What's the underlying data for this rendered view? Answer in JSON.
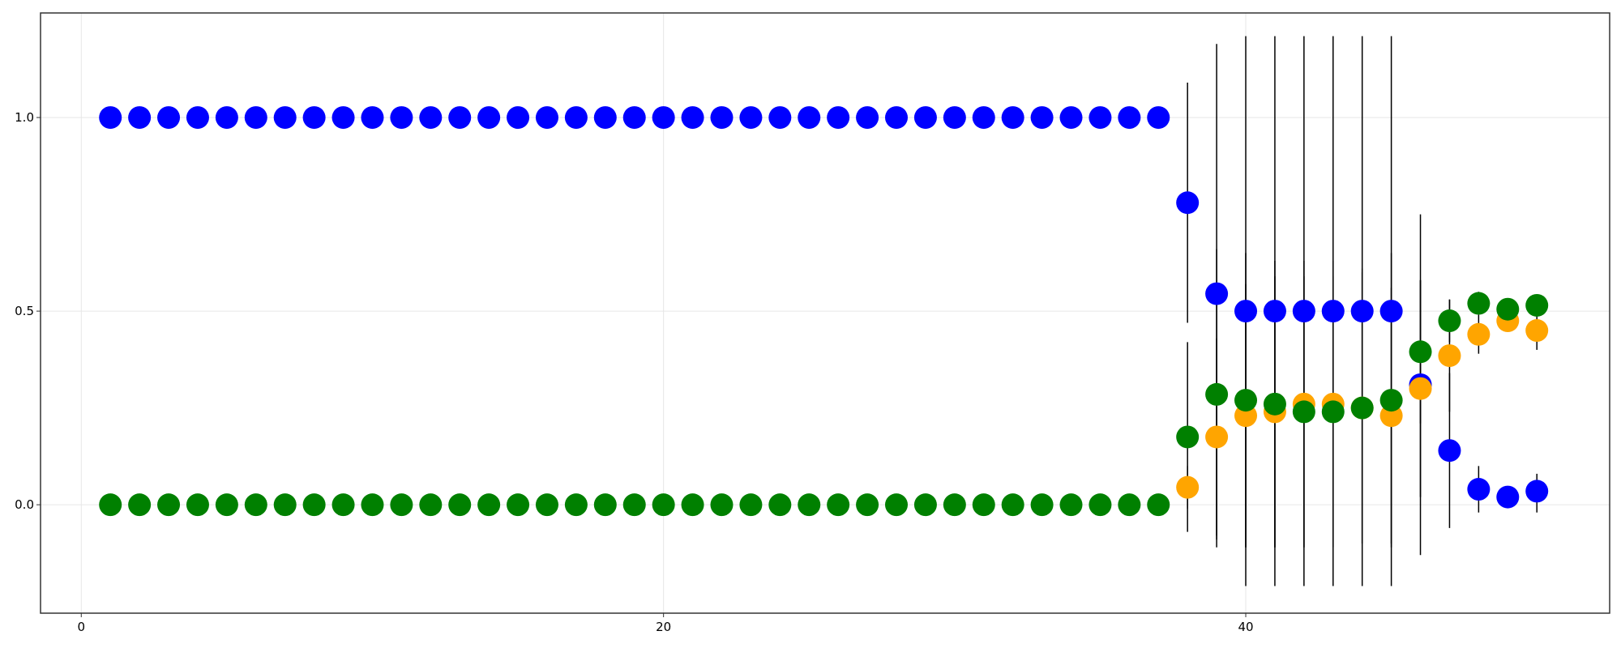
{
  "chart_data": {
    "type": "scatter",
    "title": "",
    "xlabel": "",
    "ylabel": "",
    "xlim": [
      -1.4,
      52.5
    ],
    "ylim": [
      -0.28,
      1.27
    ],
    "grid": true,
    "legend": "none",
    "x_ticks": [
      0,
      20,
      40
    ],
    "x_tick_labels": [
      "0",
      "20",
      "40"
    ],
    "y_ticks": [
      0.0,
      0.5,
      1.0
    ],
    "y_tick_labels": [
      "0.0",
      "0.5",
      "1.0"
    ],
    "series": [
      {
        "color": "#0000ff",
        "points": [
          {
            "x": 1,
            "y": 1.0
          },
          {
            "x": 2,
            "y": 1.0
          },
          {
            "x": 3,
            "y": 1.0
          },
          {
            "x": 4,
            "y": 1.0
          },
          {
            "x": 5,
            "y": 1.0
          },
          {
            "x": 6,
            "y": 1.0
          },
          {
            "x": 7,
            "y": 1.0
          },
          {
            "x": 8,
            "y": 1.0
          },
          {
            "x": 9,
            "y": 1.0
          },
          {
            "x": 10,
            "y": 1.0
          },
          {
            "x": 11,
            "y": 1.0
          },
          {
            "x": 12,
            "y": 1.0
          },
          {
            "x": 13,
            "y": 1.0
          },
          {
            "x": 14,
            "y": 1.0
          },
          {
            "x": 15,
            "y": 1.0
          },
          {
            "x": 16,
            "y": 1.0
          },
          {
            "x": 17,
            "y": 1.0
          },
          {
            "x": 18,
            "y": 1.0
          },
          {
            "x": 19,
            "y": 1.0
          },
          {
            "x": 20,
            "y": 1.0
          },
          {
            "x": 21,
            "y": 1.0
          },
          {
            "x": 22,
            "y": 1.0
          },
          {
            "x": 23,
            "y": 1.0
          },
          {
            "x": 24,
            "y": 1.0
          },
          {
            "x": 25,
            "y": 1.0
          },
          {
            "x": 26,
            "y": 1.0
          },
          {
            "x": 27,
            "y": 1.0
          },
          {
            "x": 28,
            "y": 1.0
          },
          {
            "x": 29,
            "y": 1.0
          },
          {
            "x": 30,
            "y": 1.0
          },
          {
            "x": 31,
            "y": 1.0
          },
          {
            "x": 32,
            "y": 1.0
          },
          {
            "x": 33,
            "y": 1.0
          },
          {
            "x": 34,
            "y": 1.0
          },
          {
            "x": 35,
            "y": 1.0
          },
          {
            "x": 36,
            "y": 1.0
          },
          {
            "x": 37,
            "y": 1.0
          },
          {
            "x": 38,
            "y": 0.78,
            "err_low": 0.47,
            "err_high": 1.09
          },
          {
            "x": 39,
            "y": 0.545,
            "err_low": -0.11,
            "err_high": 1.19
          },
          {
            "x": 40,
            "y": 0.5,
            "err_low": -0.21,
            "err_high": 1.21
          },
          {
            "x": 41,
            "y": 0.5,
            "err_low": -0.21,
            "err_high": 1.21
          },
          {
            "x": 42,
            "y": 0.5,
            "err_low": -0.21,
            "err_high": 1.21
          },
          {
            "x": 43,
            "y": 0.5,
            "err_low": -0.21,
            "err_high": 1.21
          },
          {
            "x": 44,
            "y": 0.5,
            "err_low": -0.21,
            "err_high": 1.21
          },
          {
            "x": 45,
            "y": 0.5,
            "err_low": -0.21,
            "err_high": 1.21
          },
          {
            "x": 46,
            "y": 0.31,
            "err_low": -0.13,
            "err_high": 0.75
          },
          {
            "x": 47,
            "y": 0.14,
            "err_low": -0.06,
            "err_high": 0.34
          },
          {
            "x": 48,
            "y": 0.04,
            "err_low": -0.02,
            "err_high": 0.1
          },
          {
            "x": 49,
            "y": 0.02
          },
          {
            "x": 50,
            "y": 0.035,
            "err_low": -0.02,
            "err_high": 0.08
          }
        ]
      },
      {
        "color": "#ffa500",
        "points": [
          {
            "x": 38,
            "y": 0.045,
            "err_low": -0.01,
            "err_high": 0.1
          },
          {
            "x": 39,
            "y": 0.175,
            "err_low": -0.08,
            "err_high": 0.43
          },
          {
            "x": 40,
            "y": 0.23,
            "err_low": -0.11,
            "err_high": 0.57
          },
          {
            "x": 41,
            "y": 0.24,
            "err_low": -0.11,
            "err_high": 0.59
          },
          {
            "x": 42,
            "y": 0.26,
            "err_low": -0.11,
            "err_high": 0.63
          },
          {
            "x": 43,
            "y": 0.26,
            "err_low": -0.11,
            "err_high": 0.63
          },
          {
            "x": 44,
            "y": 0.25,
            "err_low": -0.1,
            "err_high": 0.6
          },
          {
            "x": 45,
            "y": 0.23,
            "err_low": -0.1,
            "err_high": 0.56
          },
          {
            "x": 46,
            "y": 0.3,
            "err_low": 0.02,
            "err_high": 0.58
          },
          {
            "x": 47,
            "y": 0.385,
            "err_low": 0.24,
            "err_high": 0.53
          },
          {
            "x": 48,
            "y": 0.44,
            "err_low": 0.39,
            "err_high": 0.49
          },
          {
            "x": 49,
            "y": 0.475,
            "err_low": 0.45,
            "err_high": 0.5
          },
          {
            "x": 50,
            "y": 0.45,
            "err_low": 0.4,
            "err_high": 0.5
          }
        ]
      },
      {
        "color": "#008000",
        "points": [
          {
            "x": 1,
            "y": 0.0
          },
          {
            "x": 2,
            "y": 0.0
          },
          {
            "x": 3,
            "y": 0.0
          },
          {
            "x": 4,
            "y": 0.0
          },
          {
            "x": 5,
            "y": 0.0
          },
          {
            "x": 6,
            "y": 0.0
          },
          {
            "x": 7,
            "y": 0.0
          },
          {
            "x": 8,
            "y": 0.0
          },
          {
            "x": 9,
            "y": 0.0
          },
          {
            "x": 10,
            "y": 0.0
          },
          {
            "x": 11,
            "y": 0.0
          },
          {
            "x": 12,
            "y": 0.0
          },
          {
            "x": 13,
            "y": 0.0
          },
          {
            "x": 14,
            "y": 0.0
          },
          {
            "x": 15,
            "y": 0.0
          },
          {
            "x": 16,
            "y": 0.0
          },
          {
            "x": 17,
            "y": 0.0
          },
          {
            "x": 18,
            "y": 0.0
          },
          {
            "x": 19,
            "y": 0.0
          },
          {
            "x": 20,
            "y": 0.0
          },
          {
            "x": 21,
            "y": 0.0
          },
          {
            "x": 22,
            "y": 0.0
          },
          {
            "x": 23,
            "y": 0.0
          },
          {
            "x": 24,
            "y": 0.0
          },
          {
            "x": 25,
            "y": 0.0
          },
          {
            "x": 26,
            "y": 0.0
          },
          {
            "x": 27,
            "y": 0.0
          },
          {
            "x": 28,
            "y": 0.0
          },
          {
            "x": 29,
            "y": 0.0
          },
          {
            "x": 30,
            "y": 0.0
          },
          {
            "x": 31,
            "y": 0.0
          },
          {
            "x": 32,
            "y": 0.0
          },
          {
            "x": 33,
            "y": 0.0
          },
          {
            "x": 34,
            "y": 0.0
          },
          {
            "x": 35,
            "y": 0.0
          },
          {
            "x": 36,
            "y": 0.0
          },
          {
            "x": 37,
            "y": 0.0
          },
          {
            "x": 38,
            "y": 0.175,
            "err_low": -0.07,
            "err_high": 0.42
          },
          {
            "x": 39,
            "y": 0.285,
            "err_low": -0.09,
            "err_high": 0.66
          },
          {
            "x": 40,
            "y": 0.27,
            "err_low": -0.11,
            "err_high": 0.65
          },
          {
            "x": 41,
            "y": 0.26,
            "err_low": -0.11,
            "err_high": 0.63
          },
          {
            "x": 42,
            "y": 0.24,
            "err_low": -0.11,
            "err_high": 0.59
          },
          {
            "x": 43,
            "y": 0.24,
            "err_low": -0.11,
            "err_high": 0.59
          },
          {
            "x": 44,
            "y": 0.25,
            "err_low": -0.1,
            "err_high": 0.61
          },
          {
            "x": 45,
            "y": 0.27,
            "err_low": -0.11,
            "err_high": 0.65
          },
          {
            "x": 46,
            "y": 0.395,
            "err_low": 0.21,
            "err_high": 0.58
          },
          {
            "x": 47,
            "y": 0.475,
            "err_low": 0.42,
            "err_high": 0.53
          },
          {
            "x": 48,
            "y": 0.52,
            "err_low": 0.49,
            "err_high": 0.55
          },
          {
            "x": 49,
            "y": 0.505,
            "err_low": 0.49,
            "err_high": 0.52
          },
          {
            "x": 50,
            "y": 0.515,
            "err_low": 0.5,
            "err_high": 0.53
          }
        ]
      }
    ]
  }
}
